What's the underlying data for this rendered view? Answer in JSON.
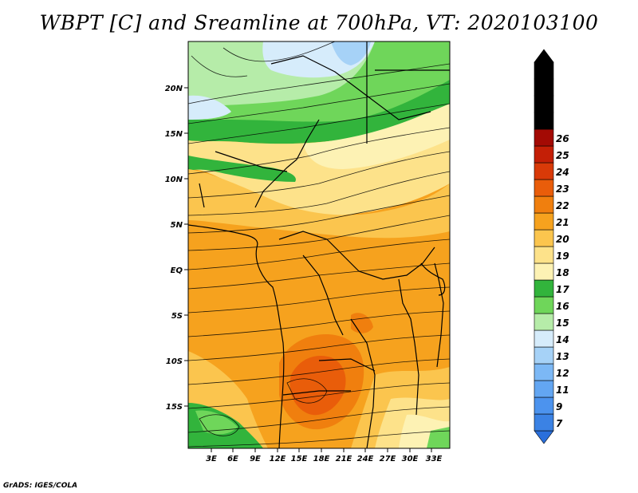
{
  "title": "WBPT [C] and Sreamline at 700hPa, VT: 2020103100",
  "footer": "GrADS: IGES/COLA",
  "map": {
    "variable": "Wet-bulb potential temperature",
    "level": "700hPa",
    "valid_time": "2020103100",
    "lat_ticks": [
      "20N",
      "15N",
      "10N",
      "5N",
      "EQ",
      "5S",
      "10S",
      "15S"
    ],
    "lon_ticks": [
      "3E",
      "6E",
      "9E",
      "12E",
      "15E",
      "18E",
      "21E",
      "24E",
      "27E",
      "30E",
      "33E"
    ]
  },
  "colorbar": {
    "levels": [
      "7",
      "9",
      "11",
      "12",
      "13",
      "14",
      "15",
      "16",
      "17",
      "18",
      "19",
      "20",
      "21",
      "22",
      "23",
      "24",
      "25",
      "26"
    ],
    "colors": [
      "#2a6fdb",
      "#3b82e4",
      "#4c93ee",
      "#63a6f2",
      "#7cb8f5",
      "#a6d2f7",
      "#d6ecfb",
      "#b6eca9",
      "#6fd65a",
      "#32b43c",
      "#fdf2b4",
      "#fde28a",
      "#fbc54e",
      "#f6a21e",
      "#f07f0e",
      "#e95d0a",
      "#d93a08",
      "#c41f06",
      "#a30a04"
    ]
  }
}
